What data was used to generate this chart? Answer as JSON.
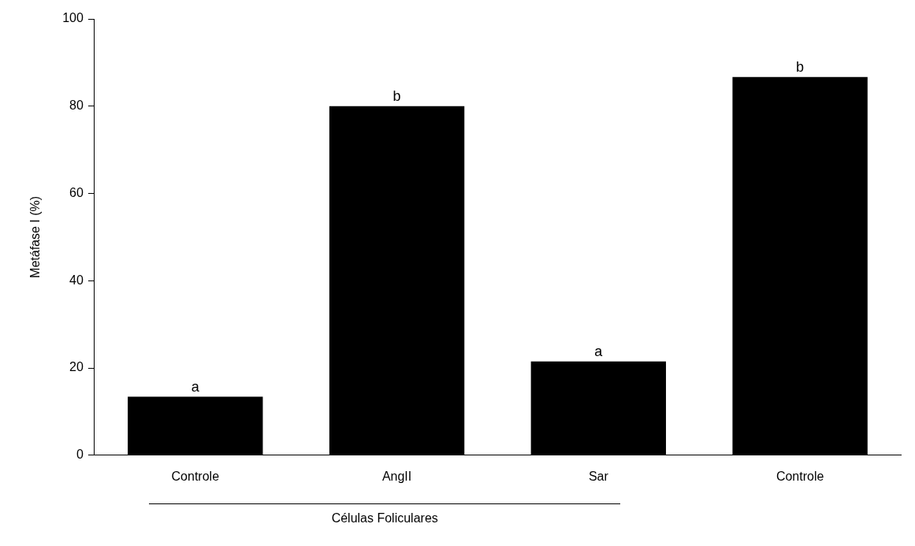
{
  "chart_data": {
    "type": "bar",
    "ylabel": "Metáfase I (%)",
    "categories": [
      "Controle",
      "AngII",
      "Sar",
      "Controle"
    ],
    "values": [
      13.4,
      80,
      21.5,
      86.7
    ],
    "value_labels": [
      "a",
      "b",
      "a",
      "b"
    ],
    "color": "#000000",
    "ylim": [
      0,
      100
    ],
    "yticks": [
      0,
      20,
      40,
      60,
      80,
      100
    ],
    "grid": false,
    "legend": false,
    "annotations": [
      "Células Foliculares"
    ]
  }
}
